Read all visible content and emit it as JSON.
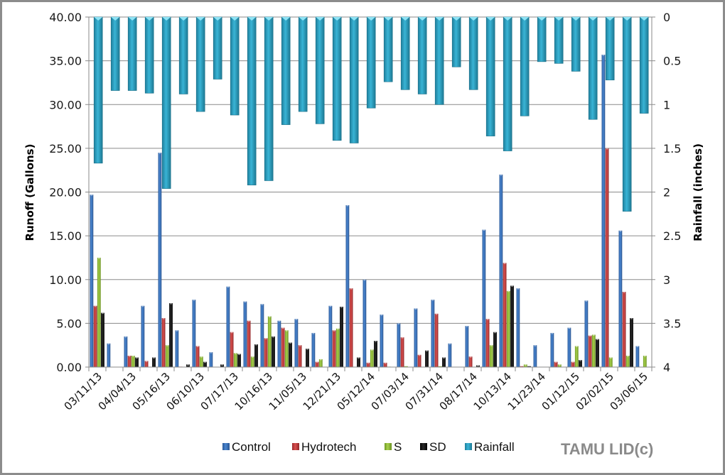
{
  "chart_data": {
    "type": "bar",
    "title": "",
    "watermark": "TAMU LID(c)",
    "xlabel": "",
    "ylabel": "Runoff (Gallons)",
    "y2label": "Rainfall (inches)",
    "ylim": [
      0,
      40
    ],
    "y2lim": [
      0,
      4
    ],
    "y2_inverted": true,
    "yticks": [
      "0.00",
      "5.00",
      "10.00",
      "15.00",
      "20.00",
      "25.00",
      "30.00",
      "35.00",
      "40.00"
    ],
    "y2ticks": [
      "0",
      "0.5",
      "1",
      "1.5",
      "2",
      "2.5",
      "3",
      "3.5",
      "4"
    ],
    "grid": true,
    "legend_position": "bottom",
    "categories": [
      "03/11/13",
      "",
      "04/04/13",
      "",
      "05/16/13",
      "",
      "06/10/13",
      "",
      "07/17/13",
      "",
      "10/16/13",
      "",
      "11/05/13",
      "",
      "12/21/13",
      "",
      "05/12/14",
      "",
      "07/03/14",
      "",
      "07/31/14",
      "",
      "08/17/14",
      "",
      "10/13/14",
      "",
      "11/23/14",
      "",
      "01/12/15",
      "",
      "02/02/15",
      "",
      "03/06/15"
    ],
    "series": [
      {
        "name": "Control",
        "axis": "primary",
        "color": "#3a6fb5",
        "values": [
          19.7,
          2.7,
          3.5,
          7.0,
          24.5,
          4.2,
          7.7,
          1.7,
          9.2,
          7.5,
          7.2,
          5.3,
          5.5,
          3.9,
          7.0,
          18.5,
          10.0,
          6.0,
          5.0,
          6.7,
          7.7,
          2.7,
          4.7,
          15.7,
          22.0,
          9.0,
          2.5,
          3.9,
          4.5,
          7.6,
          35.7,
          15.6,
          2.4
        ]
      },
      {
        "name": "Hydrotech",
        "axis": "primary",
        "color": "#c0393b",
        "values": [
          7.0,
          0,
          1.3,
          0.7,
          5.6,
          0.05,
          2.4,
          0,
          4.0,
          5.3,
          3.3,
          4.5,
          2.5,
          0.6,
          4.2,
          9.0,
          0.5,
          0.5,
          3.4,
          1.4,
          6.1,
          0,
          1.2,
          5.5,
          11.9,
          0.1,
          0,
          0.6,
          0.6,
          3.6,
          25.0,
          8.6,
          0
        ]
      },
      {
        "name": "S",
        "axis": "primary",
        "color": "#8fb93a",
        "values": [
          12.5,
          0,
          1.3,
          0,
          2.5,
          0,
          1.2,
          0,
          1.6,
          1.2,
          5.8,
          4.2,
          0,
          0.9,
          4.4,
          0,
          2.0,
          0.05,
          0.1,
          0,
          0.1,
          0,
          0,
          2.5,
          8.7,
          0.3,
          0,
          0.3,
          2.4,
          3.7,
          1.1,
          1.3,
          1.3
        ]
      },
      {
        "name": "SD",
        "axis": "primary",
        "color": "#111111",
        "values": [
          6.2,
          0,
          1.1,
          1.1,
          7.3,
          0.3,
          0.6,
          0.3,
          1.5,
          2.6,
          3.5,
          2.8,
          2.1,
          0,
          6.9,
          1.1,
          3.0,
          0,
          0,
          1.9,
          1.1,
          0,
          0.2,
          4.0,
          9.3,
          0.1,
          0,
          0,
          0.8,
          3.2,
          0,
          5.6,
          0
        ]
      },
      {
        "name": "Rainfall",
        "axis": "secondary",
        "color": "#2ea7c8",
        "values": [
          1.67,
          0.84,
          0.84,
          0.87,
          1.96,
          0.88,
          1.08,
          0.71,
          1.12,
          1.92,
          1.87,
          1.23,
          1.08,
          1.22,
          1.41,
          1.44,
          1.04,
          0.74,
          0.83,
          0.88,
          1.0,
          0.57,
          0.83,
          1.36,
          1.53,
          1.13,
          0.51,
          0.53,
          0.62,
          1.17,
          0.72,
          2.22,
          1.1
        ]
      }
    ]
  }
}
